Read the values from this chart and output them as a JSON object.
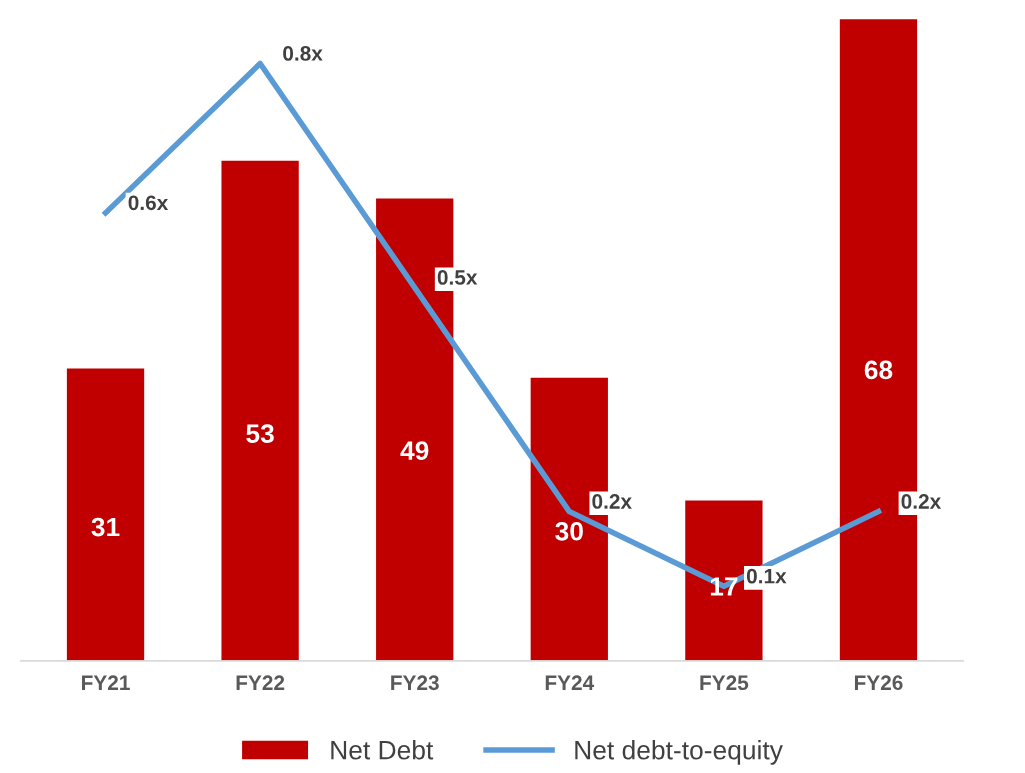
{
  "chart_data": {
    "type": "bar",
    "categories": [
      "FY21",
      "FY22",
      "FY23",
      "FY24",
      "FY25",
      "FY26"
    ],
    "series": [
      {
        "name": "Net Debt",
        "color": "#c00000",
        "values": [
          31,
          53,
          49,
          30,
          17,
          68
        ],
        "value_labels": [
          "31",
          "53",
          "49",
          "30",
          "17",
          "68"
        ]
      },
      {
        "name": "Net debt-to-equity",
        "type": "line",
        "axis": "y2",
        "color": "#5b9bd5",
        "values": [
          0.6,
          0.8,
          0.5,
          0.2,
          0.1,
          0.2
        ],
        "value_labels": [
          "0.6x",
          "0.8x",
          "0.5x",
          "0.2x",
          "0.1x",
          "0.2x"
        ]
      }
    ],
    "tick_labels": "x",
    "legend": "bottom",
    "marker": "none",
    "line_style": "solid"
  }
}
